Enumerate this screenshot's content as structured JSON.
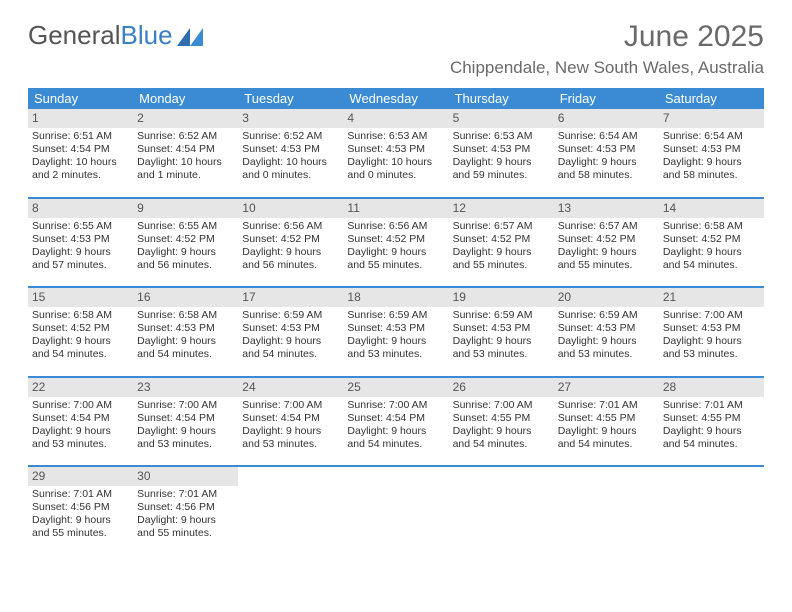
{
  "brand": {
    "part1": "General",
    "part2": "Blue"
  },
  "title": "June 2025",
  "location": "Chippendale, New South Wales, Australia",
  "weekdays": [
    "Sunday",
    "Monday",
    "Tuesday",
    "Wednesday",
    "Thursday",
    "Friday",
    "Saturday"
  ],
  "colors": {
    "header_blue": "#3b8bd4",
    "daynum_bg": "#e6e6e6",
    "rule": "#3b8bd4",
    "text": "#333333",
    "muted": "#6a6a6a"
  },
  "days": [
    {
      "n": "1",
      "sunrise": "Sunrise: 6:51 AM",
      "sunset": "Sunset: 4:54 PM",
      "daylight": "Daylight: 10 hours and 2 minutes."
    },
    {
      "n": "2",
      "sunrise": "Sunrise: 6:52 AM",
      "sunset": "Sunset: 4:54 PM",
      "daylight": "Daylight: 10 hours and 1 minute."
    },
    {
      "n": "3",
      "sunrise": "Sunrise: 6:52 AM",
      "sunset": "Sunset: 4:53 PM",
      "daylight": "Daylight: 10 hours and 0 minutes."
    },
    {
      "n": "4",
      "sunrise": "Sunrise: 6:53 AM",
      "sunset": "Sunset: 4:53 PM",
      "daylight": "Daylight: 10 hours and 0 minutes."
    },
    {
      "n": "5",
      "sunrise": "Sunrise: 6:53 AM",
      "sunset": "Sunset: 4:53 PM",
      "daylight": "Daylight: 9 hours and 59 minutes."
    },
    {
      "n": "6",
      "sunrise": "Sunrise: 6:54 AM",
      "sunset": "Sunset: 4:53 PM",
      "daylight": "Daylight: 9 hours and 58 minutes."
    },
    {
      "n": "7",
      "sunrise": "Sunrise: 6:54 AM",
      "sunset": "Sunset: 4:53 PM",
      "daylight": "Daylight: 9 hours and 58 minutes."
    },
    {
      "n": "8",
      "sunrise": "Sunrise: 6:55 AM",
      "sunset": "Sunset: 4:53 PM",
      "daylight": "Daylight: 9 hours and 57 minutes."
    },
    {
      "n": "9",
      "sunrise": "Sunrise: 6:55 AM",
      "sunset": "Sunset: 4:52 PM",
      "daylight": "Daylight: 9 hours and 56 minutes."
    },
    {
      "n": "10",
      "sunrise": "Sunrise: 6:56 AM",
      "sunset": "Sunset: 4:52 PM",
      "daylight": "Daylight: 9 hours and 56 minutes."
    },
    {
      "n": "11",
      "sunrise": "Sunrise: 6:56 AM",
      "sunset": "Sunset: 4:52 PM",
      "daylight": "Daylight: 9 hours and 55 minutes."
    },
    {
      "n": "12",
      "sunrise": "Sunrise: 6:57 AM",
      "sunset": "Sunset: 4:52 PM",
      "daylight": "Daylight: 9 hours and 55 minutes."
    },
    {
      "n": "13",
      "sunrise": "Sunrise: 6:57 AM",
      "sunset": "Sunset: 4:52 PM",
      "daylight": "Daylight: 9 hours and 55 minutes."
    },
    {
      "n": "14",
      "sunrise": "Sunrise: 6:58 AM",
      "sunset": "Sunset: 4:52 PM",
      "daylight": "Daylight: 9 hours and 54 minutes."
    },
    {
      "n": "15",
      "sunrise": "Sunrise: 6:58 AM",
      "sunset": "Sunset: 4:52 PM",
      "daylight": "Daylight: 9 hours and 54 minutes."
    },
    {
      "n": "16",
      "sunrise": "Sunrise: 6:58 AM",
      "sunset": "Sunset: 4:53 PM",
      "daylight": "Daylight: 9 hours and 54 minutes."
    },
    {
      "n": "17",
      "sunrise": "Sunrise: 6:59 AM",
      "sunset": "Sunset: 4:53 PM",
      "daylight": "Daylight: 9 hours and 54 minutes."
    },
    {
      "n": "18",
      "sunrise": "Sunrise: 6:59 AM",
      "sunset": "Sunset: 4:53 PM",
      "daylight": "Daylight: 9 hours and 53 minutes."
    },
    {
      "n": "19",
      "sunrise": "Sunrise: 6:59 AM",
      "sunset": "Sunset: 4:53 PM",
      "daylight": "Daylight: 9 hours and 53 minutes."
    },
    {
      "n": "20",
      "sunrise": "Sunrise: 6:59 AM",
      "sunset": "Sunset: 4:53 PM",
      "daylight": "Daylight: 9 hours and 53 minutes."
    },
    {
      "n": "21",
      "sunrise": "Sunrise: 7:00 AM",
      "sunset": "Sunset: 4:53 PM",
      "daylight": "Daylight: 9 hours and 53 minutes."
    },
    {
      "n": "22",
      "sunrise": "Sunrise: 7:00 AM",
      "sunset": "Sunset: 4:54 PM",
      "daylight": "Daylight: 9 hours and 53 minutes."
    },
    {
      "n": "23",
      "sunrise": "Sunrise: 7:00 AM",
      "sunset": "Sunset: 4:54 PM",
      "daylight": "Daylight: 9 hours and 53 minutes."
    },
    {
      "n": "24",
      "sunrise": "Sunrise: 7:00 AM",
      "sunset": "Sunset: 4:54 PM",
      "daylight": "Daylight: 9 hours and 53 minutes."
    },
    {
      "n": "25",
      "sunrise": "Sunrise: 7:00 AM",
      "sunset": "Sunset: 4:54 PM",
      "daylight": "Daylight: 9 hours and 54 minutes."
    },
    {
      "n": "26",
      "sunrise": "Sunrise: 7:00 AM",
      "sunset": "Sunset: 4:55 PM",
      "daylight": "Daylight: 9 hours and 54 minutes."
    },
    {
      "n": "27",
      "sunrise": "Sunrise: 7:01 AM",
      "sunset": "Sunset: 4:55 PM",
      "daylight": "Daylight: 9 hours and 54 minutes."
    },
    {
      "n": "28",
      "sunrise": "Sunrise: 7:01 AM",
      "sunset": "Sunset: 4:55 PM",
      "daylight": "Daylight: 9 hours and 54 minutes."
    },
    {
      "n": "29",
      "sunrise": "Sunrise: 7:01 AM",
      "sunset": "Sunset: 4:56 PM",
      "daylight": "Daylight: 9 hours and 55 minutes."
    },
    {
      "n": "30",
      "sunrise": "Sunrise: 7:01 AM",
      "sunset": "Sunset: 4:56 PM",
      "daylight": "Daylight: 9 hours and 55 minutes."
    }
  ]
}
